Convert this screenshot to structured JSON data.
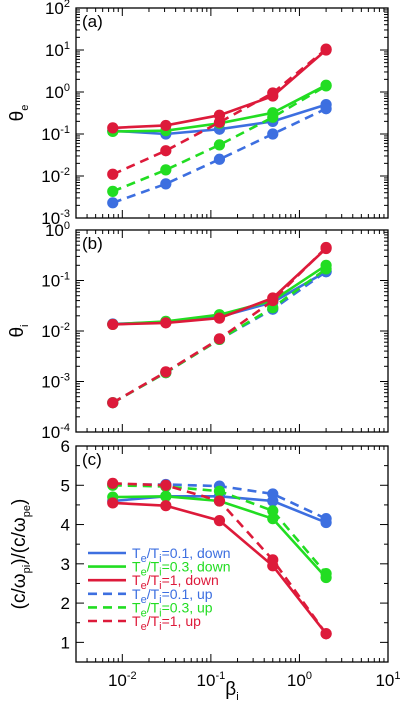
{
  "colors": {
    "blue": "#3d6fe0",
    "green": "#22dd22",
    "red": "#dd1a3a"
  },
  "chart_data": [
    {
      "panel": "(a)",
      "type": "line",
      "xscale": "log",
      "yscale": "log",
      "xlim": [
        0.003,
        10
      ],
      "ylim": [
        0.001,
        100
      ],
      "ylabel": "θ",
      "ylabel_sub": "e",
      "x": [
        0.0078,
        0.031,
        0.125,
        0.5,
        2.0
      ],
      "yticks": [
        {
          "v": 0.001,
          "m": "10",
          "e": "-3"
        },
        {
          "v": 0.01,
          "m": "10",
          "e": "-2"
        },
        {
          "v": 0.1,
          "m": "10",
          "e": "-1"
        },
        {
          "v": 1,
          "m": "10",
          "e": "0"
        },
        {
          "v": 10,
          "m": "10",
          "e": "1"
        },
        {
          "v": 100,
          "m": "10",
          "e": "2"
        }
      ],
      "series": [
        {
          "color": "blue",
          "dash": false,
          "values": [
            0.12,
            0.1,
            0.13,
            0.2,
            0.5
          ]
        },
        {
          "color": "green",
          "dash": false,
          "values": [
            0.115,
            0.12,
            0.18,
            0.32,
            1.45
          ]
        },
        {
          "color": "red",
          "dash": false,
          "values": [
            0.14,
            0.16,
            0.28,
            0.8,
            10.0
          ]
        },
        {
          "color": "blue",
          "dash": true,
          "values": [
            0.0023,
            0.0065,
            0.025,
            0.1,
            0.4
          ]
        },
        {
          "color": "green",
          "dash": true,
          "values": [
            0.0043,
            0.014,
            0.055,
            0.25,
            1.4
          ]
        },
        {
          "color": "red",
          "dash": true,
          "values": [
            0.011,
            0.04,
            0.19,
            0.95,
            10.5
          ]
        }
      ]
    },
    {
      "panel": "(b)",
      "type": "line",
      "xscale": "log",
      "yscale": "log",
      "xlim": [
        0.003,
        10
      ],
      "ylim": [
        0.0001,
        1
      ],
      "ylabel": "θ",
      "ylabel_sub": "i",
      "x": [
        0.0078,
        0.031,
        0.125,
        0.5,
        2.0
      ],
      "yticks": [
        {
          "v": 0.0001,
          "m": "10",
          "e": "-4"
        },
        {
          "v": 0.001,
          "m": "10",
          "e": "-3"
        },
        {
          "v": 0.01,
          "m": "10",
          "e": "-2"
        },
        {
          "v": 0.1,
          "m": "10",
          "e": "-1"
        },
        {
          "v": 1,
          "m": "10",
          "e": "0"
        }
      ],
      "series": [
        {
          "color": "blue",
          "dash": false,
          "values": [
            0.0138,
            0.015,
            0.019,
            0.037,
            0.15
          ]
        },
        {
          "color": "green",
          "dash": false,
          "values": [
            0.0135,
            0.0155,
            0.021,
            0.04,
            0.2
          ]
        },
        {
          "color": "red",
          "dash": false,
          "values": [
            0.0135,
            0.0145,
            0.018,
            0.045,
            0.43
          ]
        },
        {
          "color": "blue",
          "dash": true,
          "values": [
            0.00038,
            0.0015,
            0.0068,
            0.027,
            0.15
          ]
        },
        {
          "color": "green",
          "dash": true,
          "values": [
            0.00038,
            0.0015,
            0.0068,
            0.029,
            0.17
          ]
        },
        {
          "color": "red",
          "dash": true,
          "values": [
            0.00038,
            0.00155,
            0.007,
            0.04,
            0.45
          ]
        }
      ]
    },
    {
      "panel": "(c)",
      "type": "line",
      "xscale": "log",
      "yscale": "linear",
      "xlim": [
        0.003,
        10
      ],
      "ylim": [
        0.5,
        6
      ],
      "ylabel_parts": [
        "(c/ω",
        "pi",
        ")/(c/ω",
        "pe",
        ")"
      ],
      "xlabel": "β",
      "xlabel_sub": "i",
      "x": [
        0.0078,
        0.031,
        0.125,
        0.5,
        2.0
      ],
      "yticks": [
        {
          "v": 1,
          "m": "1"
        },
        {
          "v": 2,
          "m": "2"
        },
        {
          "v": 3,
          "m": "3"
        },
        {
          "v": 4,
          "m": "4"
        },
        {
          "v": 5,
          "m": "5"
        },
        {
          "v": 6,
          "m": "6"
        }
      ],
      "xticks": [
        {
          "v": 0.01,
          "m": "10",
          "e": "-2"
        },
        {
          "v": 0.1,
          "m": "10",
          "e": "-1"
        },
        {
          "v": 1,
          "m": "10",
          "e": "0"
        },
        {
          "v": 10,
          "m": "10",
          "e": "1"
        }
      ],
      "series": [
        {
          "color": "blue",
          "dash": false,
          "values": [
            4.6,
            4.72,
            4.72,
            4.6,
            4.05
          ]
        },
        {
          "color": "green",
          "dash": false,
          "values": [
            4.7,
            4.72,
            4.6,
            4.15,
            2.65
          ]
        },
        {
          "color": "red",
          "dash": false,
          "values": [
            4.55,
            4.48,
            4.1,
            2.95,
            1.22
          ]
        },
        {
          "color": "blue",
          "dash": true,
          "values": [
            5.02,
            5.02,
            4.98,
            4.78,
            4.15
          ]
        },
        {
          "color": "green",
          "dash": true,
          "values": [
            5.0,
            4.97,
            4.85,
            4.35,
            2.75
          ]
        },
        {
          "color": "red",
          "dash": true,
          "values": [
            5.05,
            5.0,
            4.6,
            3.1,
            1.22
          ]
        }
      ],
      "legend": {
        "placement": "lower-left",
        "entries": [
          {
            "color": "blue",
            "dash": false,
            "ratio": "=0.1, down"
          },
          {
            "color": "green",
            "dash": false,
            "ratio": "=0.3, down"
          },
          {
            "color": "red",
            "dash": false,
            "ratio": "=1, down"
          },
          {
            "color": "blue",
            "dash": true,
            "ratio": "=0.1, up"
          },
          {
            "color": "green",
            "dash": true,
            "ratio": "=0.3, up"
          },
          {
            "color": "red",
            "dash": true,
            "ratio": "=1, up"
          }
        ]
      }
    }
  ]
}
